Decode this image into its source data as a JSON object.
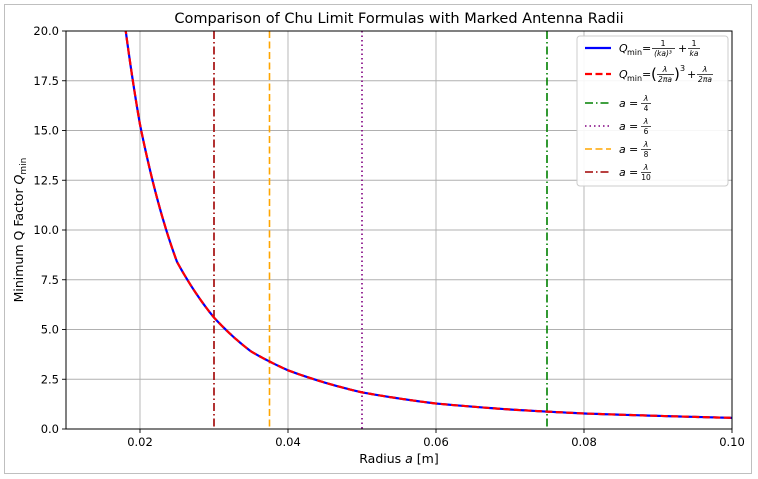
{
  "chart_data": {
    "type": "line",
    "title": "Comparison of Chu Limit Formulas with Marked Antenna Radii",
    "xlabel": "Radius a [m]",
    "ylabel": "Minimum Q Factor Q_min",
    "xlim": [
      0.01,
      0.1
    ],
    "ylim": [
      0,
      20
    ],
    "xticks": [
      0.02,
      0.04,
      0.06,
      0.08,
      0.1
    ],
    "xtick_labels": [
      "0.02",
      "0.04",
      "0.06",
      "0.08",
      "0.10"
    ],
    "yticks": [
      0,
      2.5,
      5,
      7.5,
      10,
      12.5,
      15,
      17.5,
      20
    ],
    "ytick_labels": [
      "0.0",
      "2.5",
      "5.0",
      "7.5",
      "10.0",
      "12.5",
      "15.0",
      "17.5",
      "20.0"
    ],
    "grid": true,
    "legend_position": "top-right",
    "series": [
      {
        "name": "Q_min = 1/(ka)^3 + 1/(ka)",
        "color": "#0000ff",
        "style": "solid",
        "x": [
          0.018,
          0.02,
          0.025,
          0.03,
          0.035,
          0.04,
          0.05,
          0.06,
          0.07,
          0.08,
          0.09,
          0.1
        ],
        "y": [
          20.2,
          15.3,
          8.4,
          5.6,
          3.9,
          2.95,
          1.84,
          1.28,
          0.98,
          0.78,
          0.66,
          0.56
        ]
      },
      {
        "name": "Q_min = (λ/(2πa))^3 + λ/(2πa)",
        "color": "#ff0000",
        "style": "dashed",
        "x": [
          0.018,
          0.02,
          0.025,
          0.03,
          0.035,
          0.04,
          0.05,
          0.06,
          0.07,
          0.08,
          0.09,
          0.1
        ],
        "y": [
          20.2,
          15.3,
          8.4,
          5.6,
          3.9,
          2.95,
          1.84,
          1.28,
          0.98,
          0.78,
          0.66,
          0.56
        ]
      }
    ],
    "vlines": [
      {
        "name": "a = λ/4",
        "x": 0.075,
        "color": "#008000",
        "style": "dashdot"
      },
      {
        "name": "a = λ/6",
        "x": 0.05,
        "color": "#800080",
        "style": "dotted"
      },
      {
        "name": "a = λ/8",
        "x": 0.0375,
        "color": "#ffa500",
        "style": "dashed"
      },
      {
        "name": "a = λ/10",
        "x": 0.03,
        "color": "#a00000",
        "style": "dashdot"
      }
    ]
  }
}
